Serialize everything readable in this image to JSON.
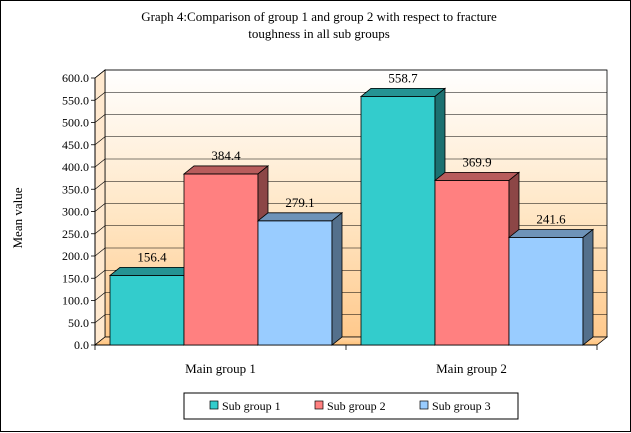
{
  "chart_data": {
    "type": "bar",
    "title_lines": [
      "Graph 4:Comparison  of group 1 and group 2 with respect to fracture",
      "toughness in all sub groups"
    ],
    "ylabel": "Mean value",
    "xlabel": "",
    "categories": [
      "Main group 1",
      "Main group 2"
    ],
    "series": [
      {
        "name": "Sub group 1",
        "values": [
          156.4,
          558.7
        ],
        "labels": [
          "156.4",
          "558.7"
        ],
        "color": "#33CCCC"
      },
      {
        "name": "Sub group 2",
        "values": [
          384.4,
          369.9
        ],
        "labels": [
          "384.4",
          "369.9"
        ],
        "color": "#FF8080"
      },
      {
        "name": "Sub group 3",
        "values": [
          279.1,
          241.6
        ],
        "labels": [
          "279.1",
          "241.6"
        ],
        "color": "#99CCFF"
      }
    ],
    "ylim": [
      0,
      600
    ],
    "yticks": [
      "0.0",
      "50.0",
      "100.0",
      "150.0",
      "200.0",
      "250.0",
      "300.0",
      "350.0",
      "400.0",
      "450.0",
      "500.0",
      "550.0",
      "600.0"
    ],
    "style": "3d-clustered-column",
    "plot_background": "gradient white-to-orange",
    "legend_position": "bottom"
  }
}
